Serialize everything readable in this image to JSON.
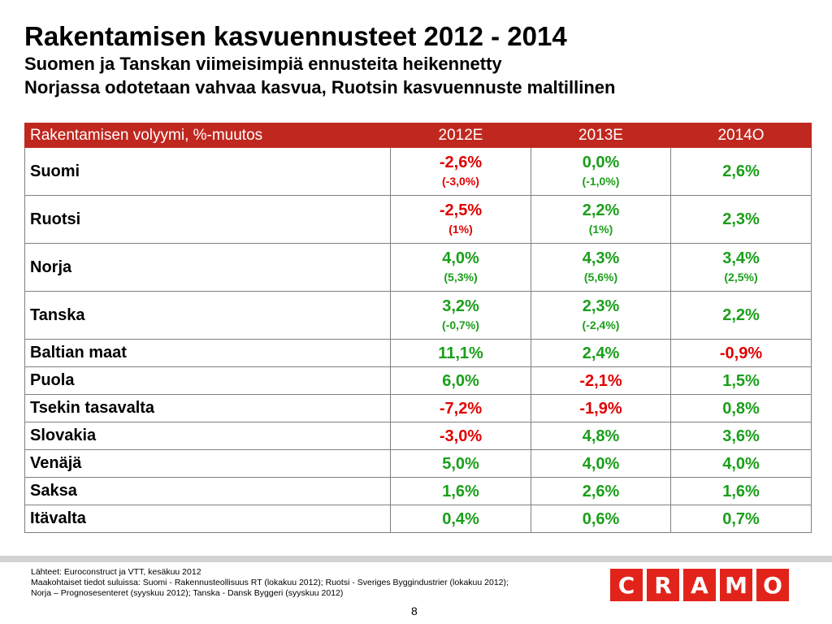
{
  "title": "Rakentamisen kasvuennusteet 2012 - 2014",
  "subtitles": [
    "Suomen ja Tanskan viimeisimpiä ennusteita heikennetty",
    "Norjassa odotetaan vahvaa kasvua, Ruotsin kasvuennuste maltillinen"
  ],
  "table": {
    "headers": [
      "Rakentamisen volyymi, %-muutos",
      "2012E",
      "2013E",
      "2014O"
    ],
    "rows": [
      {
        "country": "Suomi",
        "cells": [
          {
            "v": "-2,6%",
            "p": "(-3,0%)",
            "c": "red"
          },
          {
            "v": "0,0%",
            "p": "(-1,0%)",
            "c": "green"
          },
          {
            "v": "2,6%",
            "p": "",
            "c": "green"
          }
        ]
      },
      {
        "country": "Ruotsi",
        "cells": [
          {
            "v": "-2,5%",
            "p": "(1%)",
            "c": "red"
          },
          {
            "v": "2,2%",
            "p": "(1%)",
            "c": "green"
          },
          {
            "v": "2,3%",
            "p": "",
            "c": "green"
          }
        ]
      },
      {
        "country": "Norja",
        "cells": [
          {
            "v": "4,0%",
            "p": "(5,3%)",
            "c": "green"
          },
          {
            "v": "4,3%",
            "p": "(5,6%)",
            "c": "green"
          },
          {
            "v": "3,4%",
            "p": "(2,5%)",
            "c": "green"
          }
        ]
      },
      {
        "country": "Tanska",
        "cells": [
          {
            "v": "3,2%",
            "p": "(-0,7%)",
            "c": "green"
          },
          {
            "v": "2,3%",
            "p": "(-2,4%)",
            "c": "green"
          },
          {
            "v": "2,2%",
            "p": "",
            "c": "green"
          }
        ]
      },
      {
        "country": "Baltian maat",
        "cells": [
          {
            "v": "11,1%",
            "p": "",
            "c": "green"
          },
          {
            "v": "2,4%",
            "p": "",
            "c": "green"
          },
          {
            "v": "-0,9%",
            "p": "",
            "c": "red"
          }
        ]
      },
      {
        "country": "Puola",
        "cells": [
          {
            "v": "6,0%",
            "p": "",
            "c": "green"
          },
          {
            "v": "-2,1%",
            "p": "",
            "c": "red"
          },
          {
            "v": "1,5%",
            "p": "",
            "c": "green"
          }
        ]
      },
      {
        "country": "Tsekin tasavalta",
        "cells": [
          {
            "v": "-7,2%",
            "p": "",
            "c": "red"
          },
          {
            "v": "-1,9%",
            "p": "",
            "c": "red"
          },
          {
            "v": "0,8%",
            "p": "",
            "c": "green"
          }
        ]
      },
      {
        "country": "Slovakia",
        "cells": [
          {
            "v": "-3,0%",
            "p": "",
            "c": "red"
          },
          {
            "v": "4,8%",
            "p": "",
            "c": "green"
          },
          {
            "v": "3,6%",
            "p": "",
            "c": "green"
          }
        ]
      },
      {
        "country": "Venäjä",
        "cells": [
          {
            "v": "5,0%",
            "p": "",
            "c": "green"
          },
          {
            "v": "4,0%",
            "p": "",
            "c": "green"
          },
          {
            "v": "4,0%",
            "p": "",
            "c": "green"
          }
        ]
      },
      {
        "country": "Saksa",
        "cells": [
          {
            "v": "1,6%",
            "p": "",
            "c": "green"
          },
          {
            "v": "2,6%",
            "p": "",
            "c": "green"
          },
          {
            "v": "1,6%",
            "p": "",
            "c": "green"
          }
        ]
      },
      {
        "country": "Itävalta",
        "cells": [
          {
            "v": "0,4%",
            "p": "",
            "c": "green"
          },
          {
            "v": "0,6%",
            "p": "",
            "c": "green"
          },
          {
            "v": "0,7%",
            "p": "",
            "c": "green"
          }
        ]
      }
    ]
  },
  "colors": {
    "header_bg": "#c0281f",
    "positive": "#1a9f1a",
    "negative": "#e00000",
    "logo": "#e2231a"
  },
  "sources": [
    "Lähteet: Euroconstruct ja VTT, kesäkuu 2012",
    "Maakohtaiset tiedot suluissa: Suomi - Rakennusteollisuus RT (lokakuu 2012); Ruotsi - Sveriges Byggindustrier (lokakuu 2012);",
    "Norja – Prognosesenteret (syyskuu 2012); Tanska - Dansk Byggeri (syyskuu 2012)"
  ],
  "page_number": "8",
  "logo_letters": [
    "C",
    "R",
    "A",
    "M",
    "O"
  ]
}
